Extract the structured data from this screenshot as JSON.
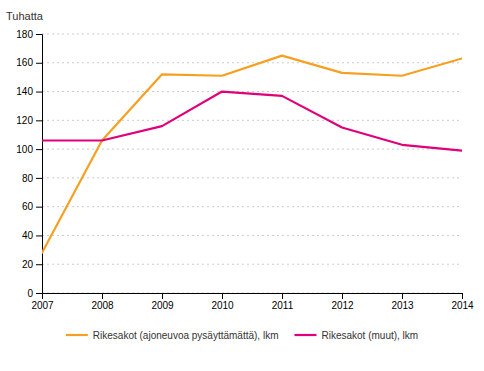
{
  "chart_data": {
    "type": "line",
    "ylabel": "Tuhatta",
    "x": [
      2007,
      2008,
      2009,
      2010,
      2011,
      2012,
      2013,
      2014
    ],
    "series": [
      {
        "name": "Rikesakot (ajoneuvoa pysäyttämättä), lkm",
        "color": "#F5A020",
        "values": [
          28,
          106,
          152,
          151,
          165,
          153,
          151,
          163
        ]
      },
      {
        "name": "Rikesakot (muut), lkm",
        "color": "#E0007A",
        "values": [
          106,
          106,
          116,
          140,
          137,
          115,
          103,
          99
        ]
      }
    ],
    "xlim": [
      2007,
      2014
    ],
    "xticks": [
      2007,
      2008,
      2009,
      2010,
      2011,
      2012,
      2013,
      2014
    ],
    "ylim": [
      0,
      180
    ],
    "yticks": [
      0,
      20,
      40,
      60,
      80,
      100,
      120,
      140,
      160,
      180
    ],
    "grid": true,
    "legend": "bottom"
  }
}
